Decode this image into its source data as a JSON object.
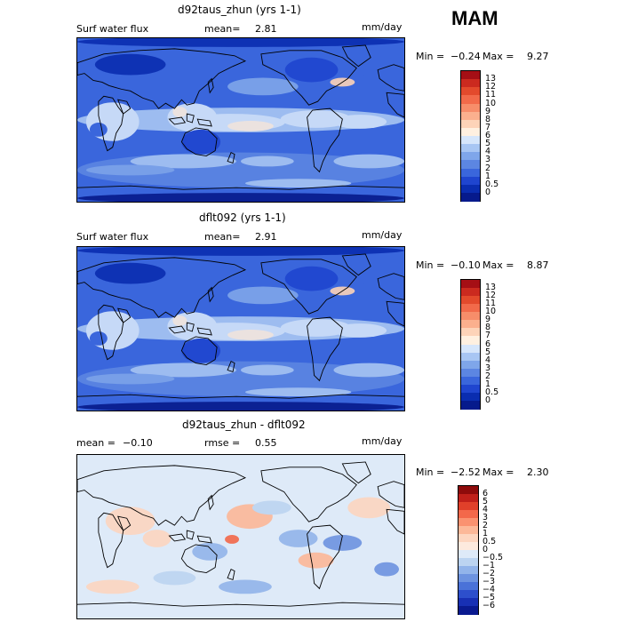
{
  "season": "MAM",
  "units": "mm/day",
  "panels": [
    {
      "id": "top",
      "title": "d92taus_zhun (yrs 1-1)",
      "left_label": "Surf water flux",
      "mean_label": "mean=",
      "mean_value": "2.81",
      "units": "mm/day",
      "min_label": "Min =",
      "min_value": "−0.24",
      "max_label": "Max =",
      "max_value": "9.27",
      "colorbar_labels": [
        "13",
        "12",
        "11",
        "10",
        "9",
        "8",
        "7",
        "6",
        "5",
        "4",
        "3",
        "2",
        "1",
        "0.5",
        "0"
      ],
      "colorbar_colors": [
        "#a50f15",
        "#cb2a1f",
        "#e34a2c",
        "#f26a4a",
        "#f78d6a",
        "#fbb08e",
        "#fdd3b8",
        "#fff0e0",
        "#d6e6fb",
        "#a8c6f3",
        "#7fa6ea",
        "#5c86e2",
        "#3a66dc",
        "#1f45cf",
        "#0a2db0",
        "#061a8c"
      ]
    },
    {
      "id": "middle",
      "title": "dflt092 (yrs 1-1)",
      "left_label": "Surf water flux",
      "mean_label": "mean=",
      "mean_value": "2.91",
      "units": "mm/day",
      "min_label": "Min =",
      "min_value": "−0.10",
      "max_label": "Max =",
      "max_value": "8.87",
      "colorbar_labels": [
        "13",
        "12",
        "11",
        "10",
        "9",
        "8",
        "7",
        "6",
        "5",
        "4",
        "3",
        "2",
        "1",
        "0.5",
        "0"
      ],
      "colorbar_colors": [
        "#a50f15",
        "#cb2a1f",
        "#e34a2c",
        "#f26a4a",
        "#f78d6a",
        "#fbb08e",
        "#fdd3b8",
        "#fff0e0",
        "#d6e6fb",
        "#a8c6f3",
        "#7fa6ea",
        "#5c86e2",
        "#3a66dc",
        "#1f45cf",
        "#0a2db0",
        "#061a8c"
      ]
    },
    {
      "id": "bottom",
      "title": "d92taus_zhun - dflt092",
      "left_label": "mean =",
      "mean_value": "−0.10",
      "rmse_label": "rmse =",
      "rmse_value": "0.55",
      "units": "mm/day",
      "min_label": "Min =",
      "min_value": "−2.52",
      "max_label": "Max =",
      "max_value": "2.30",
      "colorbar_labels": [
        "6",
        "5",
        "4",
        "3",
        "2",
        "1",
        "0.5",
        "0",
        "−0.5",
        "−1",
        "−2",
        "−3",
        "−4",
        "−5",
        "−6"
      ],
      "colorbar_colors": [
        "#8e0b0b",
        "#c0201a",
        "#e0402a",
        "#f3684a",
        "#fa9270",
        "#fcb898",
        "#fdd6c0",
        "#fdeade",
        "#deeaf8",
        "#bcd4f1",
        "#92b4ea",
        "#6d93e0",
        "#4a72d8",
        "#2d4fcc",
        "#1830b4",
        "#0a1a90"
      ]
    }
  ]
}
